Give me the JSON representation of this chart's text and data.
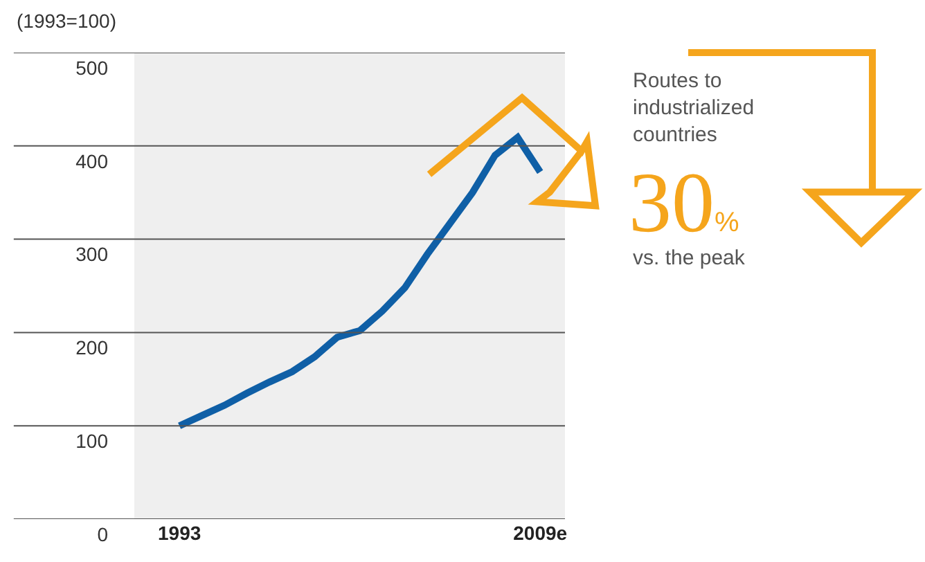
{
  "chart_data": {
    "type": "line",
    "ylabel": "(1993=100)",
    "x": [
      1993,
      1994,
      1995,
      1996,
      1997,
      1998,
      1999,
      2000,
      2001,
      2002,
      2003,
      2004,
      2005,
      2006,
      2007,
      2008,
      2009
    ],
    "series": [
      {
        "color": "#0f5fa6",
        "values": [
          100,
          111,
          122,
          135,
          147,
          158,
          174,
          195,
          202,
          223,
          248,
          284,
          317,
          350,
          390,
          409,
          372
        ]
      }
    ],
    "xlim": [
      1991,
      2010.1
    ],
    "xticks": [
      1993,
      {
        "value": 2009,
        "label": "2009e"
      }
    ],
    "ylim": [
      0,
      500
    ],
    "yticks": [
      0,
      100,
      200,
      300,
      400,
      500
    ],
    "grid": "y",
    "line_style": "solid",
    "annotations": [
      "Routes to\nindustrialized\ncountries",
      "30%",
      "vs. the peak"
    ]
  }
}
